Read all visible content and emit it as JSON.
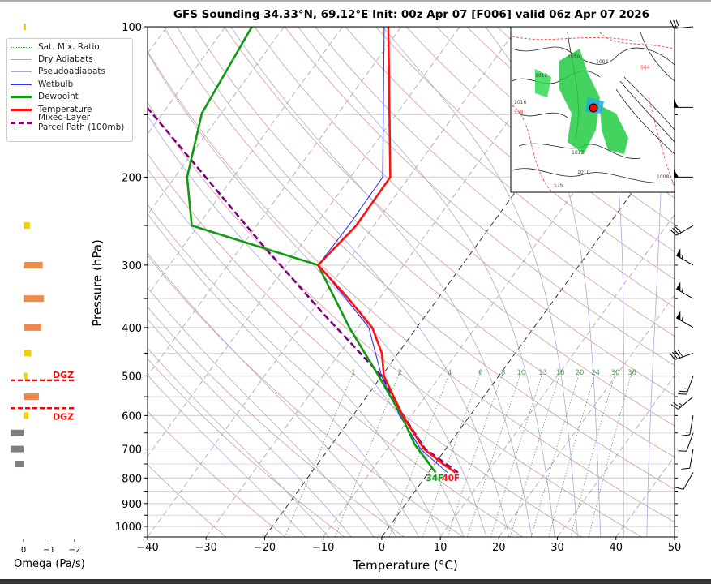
{
  "title": "GFS Sounding 34.33°N, 69.12°E Init: 00z Apr 07 [F006] valid 06z Apr 07 2026",
  "legend": {
    "items": [
      {
        "label": "Sat. Mix. Ratio",
        "color": "#5a9e5a",
        "style": "dotted"
      },
      {
        "label": "Dry Adiabats",
        "color": "#d59a9a",
        "style": "solid"
      },
      {
        "label": "Pseudoadiabats",
        "color": "#a9a9d9",
        "style": "solid"
      },
      {
        "label": "Wetbulb",
        "color": "#3333ff",
        "style": "solid"
      },
      {
        "label": "Dewpoint",
        "color": "#119911",
        "style": "solid"
      },
      {
        "label": "Temperature",
        "color": "#ff1111",
        "style": "solid"
      },
      {
        "label": "Mixed-Layer\nParcel Path (100mb)",
        "color": "#800080",
        "style": "dashed"
      }
    ]
  },
  "omega_panel": {
    "label": "Omega (Pa/s)",
    "ticks": [
      "0",
      "−1",
      "−2"
    ],
    "tick_values": [
      0,
      -1,
      -2
    ],
    "bars": [
      {
        "p": 100,
        "omega": -0.05,
        "color": "#f5d000"
      },
      {
        "p": 250,
        "omega": -0.25,
        "color": "#f5d000"
      },
      {
        "p": 300,
        "omega": -0.75,
        "color": "#f08a4b"
      },
      {
        "p": 350,
        "omega": -0.8,
        "color": "#f08a4b"
      },
      {
        "p": 400,
        "omega": -0.7,
        "color": "#f08a4b"
      },
      {
        "p": 450,
        "omega": -0.3,
        "color": "#f5d000"
      },
      {
        "p": 500,
        "omega": -0.15,
        "color": "#f5d000"
      },
      {
        "p": 550,
        "omega": -0.6,
        "color": "#f08a4b"
      },
      {
        "p": 600,
        "omega": -0.2,
        "color": "#f5d000"
      },
      {
        "p": 650,
        "omega": 0.5,
        "color": "#808080"
      },
      {
        "p": 700,
        "omega": 0.5,
        "color": "#808080"
      },
      {
        "p": 750,
        "omega": 0.35,
        "color": "#808080"
      }
    ],
    "dgz": {
      "label": "DGZ",
      "top_p": 510,
      "bottom_p": 580,
      "color": "#ff0000"
    }
  },
  "chart_data": {
    "type": "line",
    "subtype": "skew-t log-p",
    "title": "GFS Sounding 34.33°N, 69.12°E Init: 00z Apr 07 [F006] valid 06z Apr 07 2026",
    "xlabel": "Temperature (°C)",
    "ylabel": "Pressure (hPa)",
    "xlim": [
      -40,
      50
    ],
    "ylim": [
      1050,
      100
    ],
    "y_scale": "log",
    "x_ticks": [
      -40,
      -30,
      -20,
      -10,
      0,
      10,
      20,
      30,
      40,
      50
    ],
    "y_ticks": [
      100,
      200,
      300,
      400,
      500,
      600,
      700,
      800,
      900,
      1000
    ],
    "highlighted_isotherms": [
      0,
      -20
    ],
    "mixing_ratio_labels": [
      "1",
      "2",
      "4",
      "6",
      "8",
      "10",
      "13",
      "16",
      "20",
      "24",
      "30",
      "36"
    ],
    "mixing_ratio_values": [
      1,
      2,
      4,
      6,
      8,
      10,
      13,
      16,
      20,
      24,
      30,
      36
    ],
    "grid": true,
    "legend_position": "left",
    "series": [
      {
        "name": "Temperature",
        "color": "#ff1111",
        "p": [
          100,
          200,
          250,
          300,
          348,
          400,
          450,
          500,
          600,
          700,
          751,
          780
        ],
        "t": [
          -62.2,
          -43.2,
          -43.0,
          -44.6,
          -35.6,
          -27.6,
          -22.8,
          -19.6,
          -11.5,
          -3.7,
          1.5,
          4.6
        ]
      },
      {
        "name": "Dewpoint",
        "color": "#119911",
        "p": [
          100,
          149,
          200,
          250,
          300,
          400,
          500,
          600,
          686,
          780
        ],
        "t": [
          -85.5,
          -83.3,
          -77.9,
          -71.1,
          -44.6,
          -31.5,
          -20.5,
          -11.7,
          -5.8,
          1.2
        ]
      },
      {
        "name": "Wetbulb",
        "color": "#3333ff",
        "p": [
          100,
          200,
          247,
          300,
          348,
          400,
          500,
          600,
          700,
          780
        ],
        "t": [
          -62.9,
          -44.5,
          -44.3,
          -44.6,
          -36.0,
          -28.2,
          -20.0,
          -12.0,
          -4.3,
          3.2
        ]
      },
      {
        "name": "Mixed-Layer Parcel Path (100mb)",
        "color": "#800080",
        "p": [
          145,
          271,
          377,
          500,
          600,
          700,
          780
        ],
        "t": [
          -93.4,
          -57.1,
          -37.4,
          -20.0,
          -11.4,
          -3.5,
          5.0
        ]
      }
    ],
    "annotations": [
      {
        "text": "34F",
        "color": "#119911"
      },
      {
        "text": "40F",
        "color": "#ff1111"
      }
    ],
    "wind_barbs": [
      {
        "p": 100,
        "dir": 265,
        "kt": 30
      },
      {
        "p": 145,
        "dir": 270,
        "kt": 50
      },
      {
        "p": 200,
        "dir": 270,
        "kt": 50
      },
      {
        "p": 250,
        "dir": 240,
        "kt": 30
      },
      {
        "p": 300,
        "dir": 300,
        "kt": 55
      },
      {
        "p": 350,
        "dir": 300,
        "kt": 55
      },
      {
        "p": 400,
        "dir": 300,
        "kt": 55
      },
      {
        "p": 450,
        "dir": 250,
        "kt": 40
      },
      {
        "p": 500,
        "dir": 200,
        "kt": 25
      },
      {
        "p": 550,
        "dir": 230,
        "kt": 25
      },
      {
        "p": 600,
        "dir": 190,
        "kt": 15
      },
      {
        "p": 650,
        "dir": 200,
        "kt": 10
      },
      {
        "p": 700,
        "dir": 190,
        "kt": 10
      },
      {
        "p": 780,
        "dir": 210,
        "kt": 10
      }
    ]
  },
  "inset_map": {
    "labels": [
      "1010",
      "1004",
      "1016",
      "1012",
      "558",
      "564",
      "576",
      "1010",
      "1012",
      "1008"
    ]
  }
}
